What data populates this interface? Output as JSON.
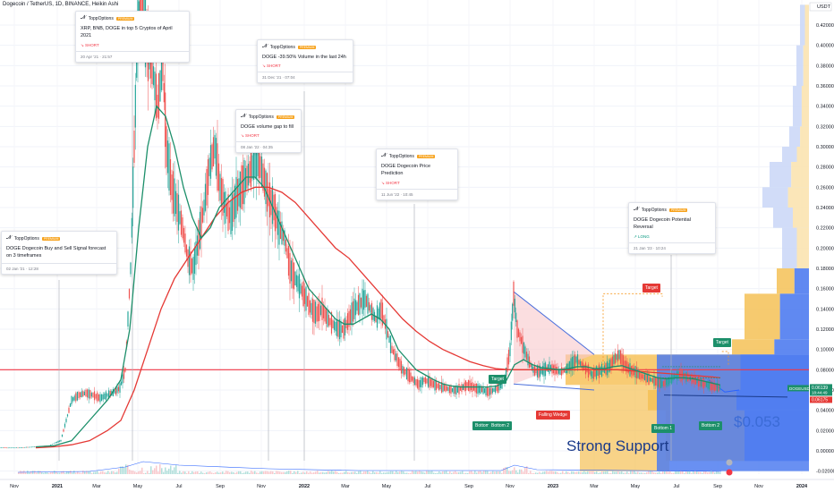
{
  "header": {
    "symbol": "Dogecoin / TetherUS, 1D, BINANCE, Heikin Ashi",
    "currency": "USDT"
  },
  "colors": {
    "price_line": "#f23645",
    "support_fill": "#f0c75e",
    "support_blue": "#4f7cf0",
    "ema_green": "#1c8f6a",
    "ema_red": "#e53935"
  },
  "chart_data": {
    "type": "candlestick-heikin-ashi",
    "title": "Dogecoin / TetherUS, 1D, BINANCE, Heikin Ashi",
    "y_ticks": [
      "0.42000",
      "0.40000",
      "0.38000",
      "0.36000",
      "0.34000",
      "0.32000",
      "0.30000",
      "0.28000",
      "0.26000",
      "0.24000",
      "0.22000",
      "0.20000",
      "0.18000",
      "0.16000",
      "0.14000",
      "0.12000",
      "0.10000",
      "0.08000",
      "0.06000",
      "0.04000",
      "0.02000",
      "0.00000",
      "-0.02000"
    ],
    "x_ticks": [
      "Nov",
      "2021",
      "Mar",
      "May",
      "Jul",
      "Sep",
      "Nov",
      "2022",
      "Mar",
      "May",
      "Jul",
      "Sep",
      "Nov",
      "2023",
      "Mar",
      "May",
      "Jul",
      "Sep",
      "Nov",
      "2024"
    ],
    "ylim": [
      -0.028,
      0.438
    ],
    "current_price": {
      "symbol": "DOGEUSDT",
      "value": "0.06139",
      "countdown": "18:44:49",
      "sub": "0.06175"
    },
    "horizontal_line": 0.08,
    "price_path": [
      [
        0,
        0.003
      ],
      [
        20,
        0.003
      ],
      [
        40,
        0.004
      ],
      [
        55,
        0.005
      ],
      [
        62,
        0.008
      ],
      [
        68,
        0.01
      ],
      [
        74,
        0.03
      ],
      [
        80,
        0.05
      ],
      [
        88,
        0.055
      ],
      [
        96,
        0.057
      ],
      [
        104,
        0.055
      ],
      [
        112,
        0.052
      ],
      [
        120,
        0.055
      ],
      [
        128,
        0.058
      ],
      [
        134,
        0.062
      ],
      [
        140,
        0.08
      ],
      [
        146,
        0.18
      ],
      [
        150,
        0.3
      ],
      [
        154,
        0.42
      ],
      [
        158,
        0.45
      ],
      [
        164,
        0.4
      ],
      [
        170,
        0.38
      ],
      [
        176,
        0.34
      ],
      [
        182,
        0.38
      ],
      [
        186,
        0.3
      ],
      [
        192,
        0.26
      ],
      [
        198,
        0.24
      ],
      [
        204,
        0.22
      ],
      [
        210,
        0.19
      ],
      [
        216,
        0.18
      ],
      [
        222,
        0.21
      ],
      [
        228,
        0.24
      ],
      [
        234,
        0.28
      ],
      [
        240,
        0.3
      ],
      [
        246,
        0.26
      ],
      [
        252,
        0.24
      ],
      [
        258,
        0.23
      ],
      [
        264,
        0.25
      ],
      [
        270,
        0.26
      ],
      [
        276,
        0.27
      ],
      [
        282,
        0.28
      ],
      [
        288,
        0.29
      ],
      [
        294,
        0.27
      ],
      [
        300,
        0.25
      ],
      [
        306,
        0.24
      ],
      [
        312,
        0.22
      ],
      [
        318,
        0.21
      ],
      [
        324,
        0.18
      ],
      [
        330,
        0.17
      ],
      [
        336,
        0.16
      ],
      [
        342,
        0.15
      ],
      [
        348,
        0.14
      ],
      [
        354,
        0.135
      ],
      [
        360,
        0.14
      ],
      [
        366,
        0.13
      ],
      [
        372,
        0.125
      ],
      [
        378,
        0.12
      ],
      [
        384,
        0.12
      ],
      [
        390,
        0.13
      ],
      [
        396,
        0.14
      ],
      [
        402,
        0.145
      ],
      [
        408,
        0.15
      ],
      [
        414,
        0.14
      ],
      [
        420,
        0.13
      ],
      [
        426,
        0.14
      ],
      [
        432,
        0.12
      ],
      [
        438,
        0.1
      ],
      [
        444,
        0.09
      ],
      [
        450,
        0.08
      ],
      [
        456,
        0.075
      ],
      [
        462,
        0.07
      ],
      [
        468,
        0.065
      ],
      [
        474,
        0.07
      ],
      [
        480,
        0.068
      ],
      [
        486,
        0.065
      ],
      [
        492,
        0.063
      ],
      [
        498,
        0.062
      ],
      [
        504,
        0.06
      ],
      [
        510,
        0.06
      ],
      [
        516,
        0.062
      ],
      [
        522,
        0.065
      ],
      [
        528,
        0.063
      ],
      [
        534,
        0.061
      ],
      [
        540,
        0.06
      ],
      [
        546,
        0.058
      ],
      [
        552,
        0.06
      ],
      [
        558,
        0.063
      ],
      [
        564,
        0.07
      ],
      [
        570,
        0.1
      ],
      [
        574,
        0.155
      ],
      [
        578,
        0.12
      ],
      [
        584,
        0.105
      ],
      [
        590,
        0.09
      ],
      [
        596,
        0.08
      ],
      [
        602,
        0.078
      ],
      [
        608,
        0.08
      ],
      [
        614,
        0.082
      ],
      [
        620,
        0.08
      ],
      [
        626,
        0.078
      ],
      [
        632,
        0.08
      ],
      [
        638,
        0.085
      ],
      [
        644,
        0.09
      ],
      [
        650,
        0.085
      ],
      [
        656,
        0.08
      ],
      [
        662,
        0.075
      ],
      [
        668,
        0.078
      ],
      [
        674,
        0.08
      ],
      [
        680,
        0.082
      ],
      [
        686,
        0.09
      ],
      [
        692,
        0.095
      ],
      [
        698,
        0.085
      ],
      [
        704,
        0.08
      ],
      [
        710,
        0.078
      ],
      [
        716,
        0.074
      ],
      [
        722,
        0.072
      ],
      [
        728,
        0.07
      ],
      [
        734,
        0.068
      ],
      [
        740,
        0.066
      ],
      [
        746,
        0.068
      ],
      [
        752,
        0.072
      ],
      [
        758,
        0.075
      ],
      [
        764,
        0.074
      ],
      [
        770,
        0.072
      ],
      [
        776,
        0.07
      ],
      [
        782,
        0.068
      ],
      [
        788,
        0.066
      ],
      [
        794,
        0.064
      ],
      [
        800,
        0.063
      ],
      [
        806,
        0.062
      ]
    ],
    "ema_green_path": [
      [
        40,
        0.004
      ],
      [
        60,
        0.005
      ],
      [
        80,
        0.01
      ],
      [
        100,
        0.03
      ],
      [
        120,
        0.05
      ],
      [
        135,
        0.07
      ],
      [
        145,
        0.12
      ],
      [
        155,
        0.22
      ],
      [
        165,
        0.3
      ],
      [
        175,
        0.34
      ],
      [
        185,
        0.33
      ],
      [
        195,
        0.3
      ],
      [
        205,
        0.26
      ],
      [
        215,
        0.23
      ],
      [
        225,
        0.21
      ],
      [
        235,
        0.22
      ],
      [
        245,
        0.24
      ],
      [
        255,
        0.25
      ],
      [
        265,
        0.26
      ],
      [
        275,
        0.27
      ],
      [
        285,
        0.27
      ],
      [
        295,
        0.26
      ],
      [
        305,
        0.24
      ],
      [
        315,
        0.22
      ],
      [
        325,
        0.2
      ],
      [
        335,
        0.18
      ],
      [
        345,
        0.16
      ],
      [
        355,
        0.15
      ],
      [
        365,
        0.14
      ],
      [
        375,
        0.13
      ],
      [
        385,
        0.125
      ],
      [
        395,
        0.125
      ],
      [
        405,
        0.13
      ],
      [
        415,
        0.135
      ],
      [
        425,
        0.13
      ],
      [
        435,
        0.12
      ],
      [
        445,
        0.1
      ],
      [
        455,
        0.09
      ],
      [
        465,
        0.08
      ],
      [
        475,
        0.075
      ],
      [
        485,
        0.07
      ],
      [
        495,
        0.066
      ],
      [
        505,
        0.064
      ],
      [
        515,
        0.063
      ],
      [
        525,
        0.063
      ],
      [
        535,
        0.063
      ],
      [
        545,
        0.063
      ],
      [
        555,
        0.064
      ],
      [
        565,
        0.068
      ],
      [
        575,
        0.085
      ],
      [
        585,
        0.09
      ],
      [
        595,
        0.085
      ],
      [
        605,
        0.082
      ],
      [
        615,
        0.081
      ],
      [
        625,
        0.08
      ],
      [
        635,
        0.081
      ],
      [
        645,
        0.083
      ],
      [
        655,
        0.083
      ],
      [
        665,
        0.081
      ],
      [
        675,
        0.081
      ],
      [
        685,
        0.083
      ],
      [
        695,
        0.084
      ],
      [
        705,
        0.081
      ],
      [
        715,
        0.078
      ],
      [
        725,
        0.075
      ],
      [
        735,
        0.072
      ],
      [
        745,
        0.071
      ],
      [
        755,
        0.072
      ],
      [
        765,
        0.072
      ],
      [
        775,
        0.071
      ],
      [
        785,
        0.069
      ],
      [
        795,
        0.067
      ],
      [
        805,
        0.065
      ]
    ],
    "ema_red_path": [
      [
        40,
        0.003
      ],
      [
        60,
        0.004
      ],
      [
        80,
        0.006
      ],
      [
        100,
        0.01
      ],
      [
        120,
        0.02
      ],
      [
        135,
        0.03
      ],
      [
        150,
        0.06
      ],
      [
        165,
        0.1
      ],
      [
        180,
        0.14
      ],
      [
        195,
        0.17
      ],
      [
        210,
        0.19
      ],
      [
        225,
        0.21
      ],
      [
        240,
        0.23
      ],
      [
        255,
        0.245
      ],
      [
        270,
        0.255
      ],
      [
        285,
        0.26
      ],
      [
        300,
        0.26
      ],
      [
        315,
        0.255
      ],
      [
        330,
        0.245
      ],
      [
        345,
        0.23
      ],
      [
        360,
        0.215
      ],
      [
        375,
        0.2
      ],
      [
        390,
        0.19
      ],
      [
        405,
        0.175
      ],
      [
        420,
        0.16
      ],
      [
        435,
        0.145
      ],
      [
        450,
        0.13
      ],
      [
        465,
        0.118
      ],
      [
        480,
        0.108
      ],
      [
        495,
        0.1
      ],
      [
        510,
        0.094
      ],
      [
        525,
        0.088
      ],
      [
        540,
        0.084
      ],
      [
        555,
        0.081
      ],
      [
        570,
        0.08
      ],
      [
        585,
        0.08
      ],
      [
        600,
        0.08
      ],
      [
        615,
        0.08
      ],
      [
        630,
        0.08
      ],
      [
        645,
        0.08
      ],
      [
        660,
        0.08
      ],
      [
        675,
        0.08
      ],
      [
        690,
        0.08
      ],
      [
        705,
        0.079
      ],
      [
        720,
        0.078
      ],
      [
        735,
        0.077
      ],
      [
        750,
        0.076
      ],
      [
        765,
        0.075
      ],
      [
        780,
        0.074
      ],
      [
        795,
        0.073
      ],
      [
        805,
        0.072
      ]
    ]
  },
  "notes": [
    {
      "brand": "ToppOptions",
      "badge": "PREMIUM",
      "title": "XRP, BNB, DOGE in top 5 Cryptos of April 2021",
      "signal": "SHORT",
      "signal_kind": "short",
      "ts": "20 Apr '21 · 21:57"
    },
    {
      "brand": "ToppOptions",
      "badge": "PREMIUM",
      "title": "DOGE -39.50% Volume in the last 24h",
      "signal": "SHORT",
      "signal_kind": "short",
      "ts": "31 Dec '21 · 07:04"
    },
    {
      "brand": "ToppOptions",
      "badge": "PREMIUM",
      "title": "DOGE volume gap to fill",
      "signal": "SHORT",
      "signal_kind": "short",
      "ts": "08 Jan '22 · 04:35"
    },
    {
      "brand": "ToppOptions",
      "badge": "PREMIUM",
      "title": "DOGE Dogecoin Price Prediction",
      "signal": "SHORT",
      "signal_kind": "short",
      "ts": "11 Jun '22 · 10:45"
    },
    {
      "brand": "ToppOptions",
      "badge": "PREMIUM",
      "title": "DOGE Dogecoin Buy and Sell Signal forecast on 3 timeframes",
      "signal": "",
      "signal_kind": "none",
      "ts": "02 Jan '21 · 12:28"
    },
    {
      "brand": "ToppOptions",
      "badge": "PREMIUM",
      "title": "DOGE Dogecoin Potential Reversal",
      "signal": "LONG",
      "signal_kind": "long",
      "ts": "21 Jan '23 · 10:24"
    }
  ],
  "annotations": {
    "target1": "Target",
    "target2": "Target",
    "target3": "Target",
    "bottom1a": "Bottom 1",
    "bottom2a": "Bottom 2",
    "bottom1b": "Bottom 1",
    "bottom2b": "Bottom 2",
    "falling_wedge": "Falling Wedge",
    "strong_support": "Strong Support",
    "price_053": "$0.053"
  }
}
